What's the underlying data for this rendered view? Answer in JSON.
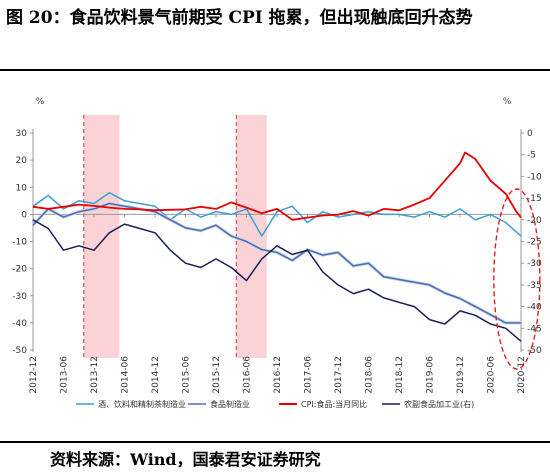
{
  "title": "图 20：食品饮料景气前期受 CPI 拖累，但出现触底回升态势",
  "source": "资料来源：Wind，国泰君安证券研究",
  "chart_data": {
    "type": "line",
    "left_axis": {
      "unit": "%",
      "ylim": [
        -50,
        30
      ],
      "ticks": [
        30,
        20,
        10,
        0,
        -10,
        -20,
        -30,
        -40,
        -50
      ]
    },
    "right_axis": {
      "unit": "%",
      "ylim": [
        -50,
        0
      ],
      "inverted": true,
      "ticks": [
        0,
        -5,
        -10,
        -15,
        -20,
        -25,
        -30,
        -35,
        -40,
        -45,
        -50
      ]
    },
    "x_ticks": [
      "2012-12",
      "2013-06",
      "2013-12",
      "2014-06",
      "2014-12",
      "2015-06",
      "2015-12",
      "2016-06",
      "2016-12",
      "2017-06",
      "2017-12",
      "2018-06",
      "2018-12",
      "2019-06",
      "2019-12",
      "2020-06",
      "2020-12"
    ],
    "shaded_periods": [
      {
        "from": "2013-10",
        "to": "2014-05"
      },
      {
        "from": "2016-04",
        "to": "2016-10"
      }
    ],
    "highlight": "ellipse around 2020-10 to 2020-12",
    "series": [
      {
        "name": "酒、饮料和精制茶制造业",
        "axis": "left",
        "color": "#3a9fd6",
        "points": [
          [
            "2012-12",
            3
          ],
          [
            "2013-03",
            7
          ],
          [
            "2013-06",
            2
          ],
          [
            "2013-09",
            5
          ],
          [
            "2013-12",
            4
          ],
          [
            "2014-03",
            8
          ],
          [
            "2014-06",
            5
          ],
          [
            "2014-09",
            4
          ],
          [
            "2014-12",
            3
          ],
          [
            "2015-03",
            -2
          ],
          [
            "2015-06",
            2
          ],
          [
            "2015-09",
            -1
          ],
          [
            "2015-12",
            1
          ],
          [
            "2016-03",
            0
          ],
          [
            "2016-06",
            2
          ],
          [
            "2016-09",
            -8
          ],
          [
            "2016-12",
            1
          ],
          [
            "2017-03",
            3
          ],
          [
            "2017-06",
            -3
          ],
          [
            "2017-09",
            1
          ],
          [
            "2017-12",
            -1
          ],
          [
            "2018-03",
            0
          ],
          [
            "2018-06",
            1
          ],
          [
            "2018-09",
            0
          ],
          [
            "2018-12",
            0
          ],
          [
            "2019-03",
            -1
          ],
          [
            "2019-06",
            1
          ],
          [
            "2019-09",
            -1
          ],
          [
            "2019-12",
            2
          ],
          [
            "2020-03",
            -2
          ],
          [
            "2020-06",
            0
          ],
          [
            "2020-09",
            -3
          ],
          [
            "2020-12",
            -8
          ]
        ]
      },
      {
        "name": "食品制造业",
        "axis": "left",
        "color": "#4a6fb5",
        "points": [
          [
            "2012-12",
            -4
          ],
          [
            "2013-03",
            2
          ],
          [
            "2013-06",
            -1
          ],
          [
            "2013-09",
            1
          ],
          [
            "2013-12",
            2
          ],
          [
            "2014-03",
            4
          ],
          [
            "2014-06",
            3
          ],
          [
            "2014-09",
            2
          ],
          [
            "2014-12",
            1
          ],
          [
            "2015-03",
            -2
          ],
          [
            "2015-06",
            -5
          ],
          [
            "2015-09",
            -6
          ],
          [
            "2015-12",
            -4
          ],
          [
            "2016-03",
            -8
          ],
          [
            "2016-06",
            -10
          ],
          [
            "2016-09",
            -13
          ],
          [
            "2016-12",
            -14
          ],
          [
            "2017-03",
            -17
          ],
          [
            "2017-06",
            -13
          ],
          [
            "2017-09",
            -15
          ],
          [
            "2017-12",
            -14
          ],
          [
            "2018-03",
            -19
          ],
          [
            "2018-06",
            -18
          ],
          [
            "2018-09",
            -23
          ],
          [
            "2018-12",
            -24
          ],
          [
            "2019-03",
            -25
          ],
          [
            "2019-06",
            -26
          ],
          [
            "2019-09",
            -29
          ],
          [
            "2019-12",
            -31
          ],
          [
            "2020-03",
            -34
          ],
          [
            "2020-06",
            -37
          ],
          [
            "2020-09",
            -40
          ],
          [
            "2020-12",
            -40
          ]
        ]
      },
      {
        "name": "CPI:食品:当月同比",
        "axis": "right",
        "color": "#e60000",
        "points": [
          [
            "2012-12",
            -17
          ],
          [
            "2013-03",
            -17.5
          ],
          [
            "2013-06",
            -17
          ],
          [
            "2013-09",
            -16.5
          ],
          [
            "2013-12",
            -16.8
          ],
          [
            "2014-03",
            -17.2
          ],
          [
            "2014-06",
            -17.5
          ],
          [
            "2014-09",
            -17.6
          ],
          [
            "2014-12",
            -17.8
          ],
          [
            "2015-03",
            -17.7
          ],
          [
            "2015-06",
            -17.6
          ],
          [
            "2015-09",
            -17
          ],
          [
            "2015-12",
            -17.5
          ],
          [
            "2016-03",
            -16
          ],
          [
            "2016-06",
            -17.2
          ],
          [
            "2016-09",
            -18.5
          ],
          [
            "2016-12",
            -17.5
          ],
          [
            "2017-03",
            -20
          ],
          [
            "2017-06",
            -19.5
          ],
          [
            "2017-09",
            -19
          ],
          [
            "2017-12",
            -18.8
          ],
          [
            "2018-03",
            -18
          ],
          [
            "2018-06",
            -19
          ],
          [
            "2018-09",
            -17.5
          ],
          [
            "2018-12",
            -17.8
          ],
          [
            "2019-03",
            -16.5
          ],
          [
            "2019-06",
            -15
          ],
          [
            "2019-09",
            -11
          ],
          [
            "2019-12",
            -7
          ],
          [
            "2020-01",
            -4.5
          ],
          [
            "2020-03",
            -6
          ],
          [
            "2020-06",
            -11
          ],
          [
            "2020-09",
            -14
          ],
          [
            "2020-11",
            -18
          ],
          [
            "2020-12",
            -19.5
          ]
        ]
      },
      {
        "name": "农副食品加工业(右)",
        "axis": "right",
        "color": "#1a1f55",
        "points": [
          [
            "2012-12",
            -20
          ],
          [
            "2013-03",
            -22
          ],
          [
            "2013-06",
            -27
          ],
          [
            "2013-09",
            -26
          ],
          [
            "2013-12",
            -27
          ],
          [
            "2014-03",
            -23
          ],
          [
            "2014-06",
            -21
          ],
          [
            "2014-09",
            -22
          ],
          [
            "2014-12",
            -23
          ],
          [
            "2015-03",
            -27
          ],
          [
            "2015-06",
            -30
          ],
          [
            "2015-09",
            -31
          ],
          [
            "2015-12",
            -29
          ],
          [
            "2016-03",
            -31
          ],
          [
            "2016-06",
            -34
          ],
          [
            "2016-09",
            -29
          ],
          [
            "2016-12",
            -26
          ],
          [
            "2017-03",
            -28
          ],
          [
            "2017-06",
            -27
          ],
          [
            "2017-09",
            -32
          ],
          [
            "2017-12",
            -35
          ],
          [
            "2018-03",
            -37
          ],
          [
            "2018-06",
            -36
          ],
          [
            "2018-09",
            -38
          ],
          [
            "2018-12",
            -39
          ],
          [
            "2019-03",
            -40
          ],
          [
            "2019-06",
            -43
          ],
          [
            "2019-09",
            -44
          ],
          [
            "2019-12",
            -41
          ],
          [
            "2020-03",
            -42
          ],
          [
            "2020-06",
            -44
          ],
          [
            "2020-09",
            -45
          ],
          [
            "2020-12",
            -48
          ]
        ]
      }
    ]
  }
}
